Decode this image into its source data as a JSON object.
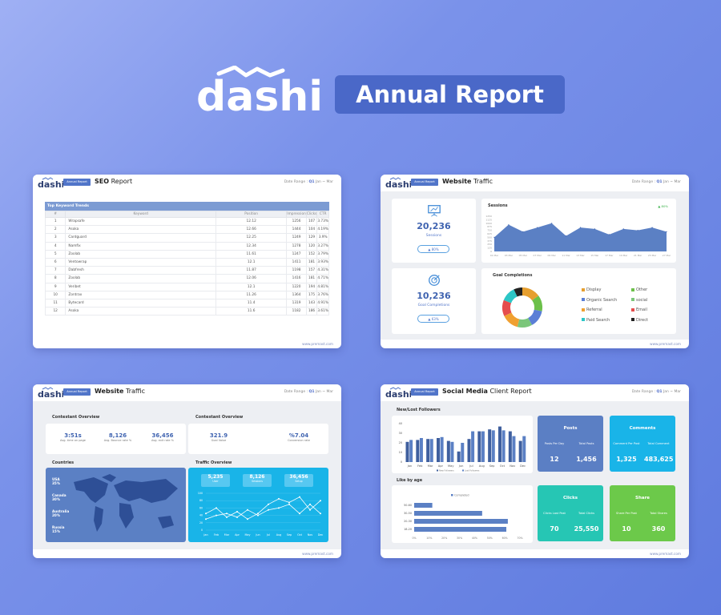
{
  "header": {
    "brand": "dashi",
    "title": "Annual Report"
  },
  "common": {
    "badge": "Annual Report",
    "date_prefix": "Date Range :",
    "date_q": "Q1",
    "date_range": "Jan ~ Mar",
    "footer": "www.premast.com"
  },
  "seo": {
    "title_bold": "SEO",
    "title_rest": "Report",
    "table_title": "Top Keyword Trends",
    "headers": [
      "#",
      "Keyword",
      "Position",
      "Impression",
      "Clicks",
      "CTR"
    ],
    "rows": [
      [
        "1",
        "Wrapsafe",
        "12.12",
        "1256",
        "107",
        "3.73%"
      ],
      [
        "2",
        "Asoka",
        "12.66",
        "1444",
        "104",
        "4.19%"
      ],
      [
        "3",
        "Cardguard",
        "12.25",
        "1249",
        "129",
        "3.9%"
      ],
      [
        "4",
        "Namfix",
        "12.34",
        "1278",
        "120",
        "3.27%"
      ],
      [
        "5",
        "Zoolab",
        "11.61",
        "1247",
        "152",
        "3.79%"
      ],
      [
        "6",
        "Ventowrap",
        "12.1",
        "1411",
        "181",
        "3.93%"
      ],
      [
        "7",
        "Dabfresh",
        "11.87",
        "1198",
        "157",
        "4.31%"
      ],
      [
        "8",
        "Zoolab",
        "12.06",
        "1416",
        "181",
        "4.71%"
      ],
      [
        "9",
        "Veribet",
        "12.1",
        "1220",
        "194",
        "4.81%"
      ],
      [
        "10",
        "Zontrax",
        "11.26",
        "1364",
        "175",
        "3.76%"
      ],
      [
        "11",
        "Bytecard",
        "11.4",
        "1319",
        "143",
        "4.91%"
      ],
      [
        "12",
        "Asoka",
        "11.6",
        "1182",
        "186",
        "3.61%"
      ]
    ]
  },
  "traffic1": {
    "title_bold": "Website",
    "title_rest": "Traffic",
    "sessions_value": "20,236",
    "sessions_label": "Sessions",
    "sessions_change": "▲ 80%",
    "goal_value": "10,236",
    "goal_label": "Goal Completions",
    "goal_change": "▲ 63%",
    "sessions_title": "Sessions",
    "sessions_badge": "▲ 80%",
    "goal_title": "Goal Completions",
    "legend": [
      {
        "label": "Display",
        "color": "#e69f2f"
      },
      {
        "label": "Other",
        "color": "#6cc04a"
      },
      {
        "label": "Organic Search",
        "color": "#5b7fd6"
      },
      {
        "label": "social",
        "color": "#7bc67a"
      },
      {
        "label": "Referral",
        "color": "#f0a030"
      },
      {
        "label": "Email",
        "color": "#e54d4d"
      },
      {
        "label": "Paid Search",
        "color": "#2cc6c6"
      },
      {
        "label": "Direct",
        "color": "#222222"
      }
    ]
  },
  "traffic2": {
    "title_bold": "Website",
    "title_rest": "Traffic",
    "overview1_title": "Contestant Overview",
    "overview1_stats": [
      {
        "value": "3:51s",
        "label": "Avg. time on page"
      },
      {
        "value": "8,126",
        "label": "Avg. Bounce rate %"
      },
      {
        "value": "36,456",
        "label": "Avg. exit rate %"
      }
    ],
    "overview2_title": "Contestant Overview",
    "overview2_stats": [
      {
        "value": "321.9",
        "label": "Goal Value"
      },
      {
        "value": "%7.04",
        "label": "Conversion rate"
      }
    ],
    "countries_title": "Countries",
    "countries": [
      {
        "name": "USA",
        "pct": "35%"
      },
      {
        "name": "Canada",
        "pct": "30%"
      },
      {
        "name": "Australia",
        "pct": "20%"
      },
      {
        "name": "Russia",
        "pct": "15%"
      }
    ],
    "traffic_title": "Traffic Overview",
    "traffic_stats": [
      {
        "value": "5,235",
        "label": "User"
      },
      {
        "value": "8,126",
        "label": "Sessions"
      },
      {
        "value": "36,456",
        "label": "Setup"
      }
    ],
    "months": [
      "Jan",
      "Feb",
      "Mar",
      "Apr",
      "May",
      "Jun",
      "Jul",
      "Aug",
      "Sep",
      "Oct",
      "Nov",
      "Dec"
    ]
  },
  "social": {
    "title_bold": "Social Media",
    "title_rest": "Client Report",
    "followers_title": "New/Lost Followers",
    "likes_title": "Like by age",
    "likes_legend": "Completed",
    "followers_legend": [
      "New Followers",
      "Lost Followers"
    ],
    "tiles": [
      {
        "title": "Posts",
        "l1": "Posts Per Day",
        "l2": "Total Posts",
        "v1": "12",
        "v2": "1,456",
        "color": "#5b7fc4"
      },
      {
        "title": "Comments",
        "l1": "Comment Per Post",
        "l2": "Total Comment",
        "v1": "1,325",
        "v2": "483,625",
        "color": "#19b4e8"
      },
      {
        "title": "Clicks",
        "l1": "Clicks Last Post",
        "l2": "Total Clicks",
        "v1": "70",
        "v2": "25,550",
        "color": "#26c6b4"
      },
      {
        "title": "Share",
        "l1": "Share Per Post",
        "l2": "Total Shares",
        "v1": "10",
        "v2": "360",
        "color": "#6cc94a"
      }
    ]
  },
  "chart_data": [
    {
      "type": "area",
      "title": "Sessions",
      "x": [
        "01 Mar",
        "03 Mar",
        "05 Mar",
        "07 Mar",
        "09 Mar",
        "11 Mar",
        "13 Mar",
        "15 Mar",
        "17 Mar",
        "19 Mar",
        "21 Mar",
        "23 Mar",
        "27 Mar"
      ],
      "values": [
        500,
        950,
        700,
        850,
        1000,
        550,
        850,
        800,
        600,
        800,
        750,
        850,
        700
      ],
      "ylim": [
        0,
        1250
      ],
      "yticks": [
        "1250",
        "1125",
        "1000",
        "875",
        "750",
        "625",
        "500",
        "375",
        "250",
        "125",
        "0"
      ]
    },
    {
      "type": "pie",
      "title": "Goal Completions",
      "labels": [
        "Display",
        "Other",
        "Organic Search",
        "social",
        "Referral",
        "Email",
        "Paid Search",
        "Direct"
      ],
      "values": [
        15,
        13,
        14,
        12,
        14,
        13,
        12,
        7
      ]
    },
    {
      "type": "line",
      "title": "Traffic Overview",
      "x": [
        "Jan",
        "Feb",
        "Mar",
        "Apr",
        "May",
        "Jun",
        "Jul",
        "Aug",
        "Sep",
        "Oct",
        "Nov",
        "Dec"
      ],
      "series": [
        {
          "values": [
            45,
            60,
            35,
            50,
            30,
            45,
            70,
            85,
            75,
            90,
            55,
            80
          ]
        },
        {
          "values": [
            30,
            40,
            45,
            35,
            55,
            40,
            55,
            60,
            70,
            45,
            70,
            45
          ]
        }
      ],
      "ylim": [
        0,
        100
      ],
      "yticks": [
        "100",
        "80",
        "60",
        "40",
        "20",
        "0"
      ]
    },
    {
      "type": "bar",
      "title": "New/Lost Followers",
      "categories": [
        "Jan",
        "Feb",
        "Mar",
        "Apr",
        "May",
        "Jun",
        "Jul",
        "Aug",
        "Sep",
        "Oct",
        "Nov",
        "Dec"
      ],
      "series": [
        {
          "name": "New Followers",
          "values": [
            21,
            23,
            24,
            25,
            22,
            11,
            24,
            32,
            34,
            37,
            32,
            22
          ]
        },
        {
          "name": "Lost Followers",
          "values": [
            23,
            25,
            24,
            26,
            21,
            20,
            32,
            32,
            33,
            33,
            27,
            27
          ]
        }
      ],
      "ylim": [
        0,
        40
      ],
      "yticks": [
        "40",
        "30",
        "20",
        "10",
        "0"
      ]
    },
    {
      "type": "bar",
      "title": "Like by age",
      "orientation": "horizontal",
      "categories": [
        "50-60",
        "30-50",
        "20-30",
        "18-20"
      ],
      "values": [
        0.12,
        0.45,
        0.62,
        0.61
      ],
      "xticks": [
        "0%",
        "10%",
        "20%",
        "30%",
        "40%",
        "50%",
        "60%",
        "70%"
      ],
      "xlim": [
        0,
        0.7
      ]
    }
  ]
}
